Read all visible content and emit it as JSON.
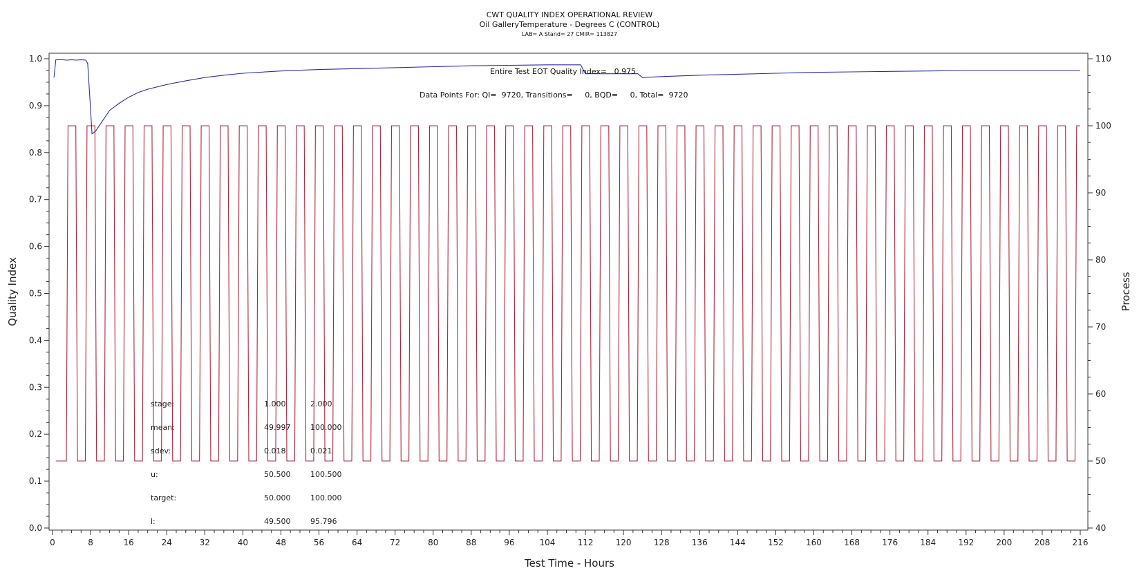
{
  "chart_data": {
    "type": "line",
    "title": "CWT QUALITY INDEX OPERATIONAL REVIEW",
    "subtitle": "Oil GalleryTemperature - Degrees C (CONTROL)",
    "subsubtitle": "LAB= A Stand= 27 CMIR= 113827",
    "xlabel": "Test Time - Hours",
    "ylabel": "Quality Index",
    "y2label": "Process",
    "xlim": [
      0,
      216
    ],
    "ylim": [
      0,
      1.0
    ],
    "y2lim": [
      40,
      110
    ],
    "xticks": [
      0,
      8,
      16,
      24,
      32,
      40,
      48,
      56,
      64,
      72,
      80,
      88,
      96,
      104,
      112,
      120,
      128,
      136,
      144,
      152,
      160,
      168,
      176,
      184,
      192,
      200,
      208,
      216
    ],
    "yticks": [
      0.0,
      0.1,
      0.2,
      0.3,
      0.4,
      0.5,
      0.6,
      0.7,
      0.8,
      0.9,
      1.0
    ],
    "ytick_labels": [
      "0.0",
      "0.1",
      "0.2",
      "0.3",
      "0.4",
      "0.5",
      "0.6",
      "0.7",
      "0.8",
      "0.9",
      "1.0"
    ],
    "y2ticks": [
      40,
      50,
      60,
      70,
      80,
      90,
      100,
      110
    ],
    "grid": false,
    "annotations": {
      "eot": "Entire Test EOT Quality Index=   0.975",
      "points": "Data Points For: QI=  9720, Transitions=     0, BQD=     0, Total=  9720"
    },
    "stats": {
      "rows": [
        {
          "label": "stage:",
          "v1": "1.000",
          "v2": "2.000"
        },
        {
          "label": "mean:",
          "v1": "49.997",
          "v2": "100.000"
        },
        {
          "label": "sdev:",
          "v1": "0.018",
          "v2": "0.021"
        },
        {
          "label": "u:",
          "v1": "50.500",
          "v2": "100.500"
        },
        {
          "label": "target:",
          "v1": "50.000",
          "v2": "100.000"
        },
        {
          "label": "l:",
          "v1": "49.500",
          "v2": "95.796"
        }
      ]
    },
    "series": [
      {
        "axis": "left",
        "color": "#2b2bb0",
        "x": [
          0.3,
          0.7,
          2,
          3,
          4,
          5,
          6,
          7,
          7.4,
          8,
          8.3,
          9,
          10,
          11,
          12,
          14,
          16,
          18,
          20,
          24,
          28,
          32,
          36,
          40,
          48,
          56,
          64,
          72,
          80,
          88,
          96,
          104,
          110,
          111,
          112,
          116,
          120,
          123,
          124,
          128,
          136,
          144,
          152,
          160,
          168,
          176,
          184,
          192,
          200,
          208,
          216
        ],
        "y": [
          0.96,
          0.998,
          0.998,
          0.997,
          0.998,
          0.997,
          0.998,
          0.997,
          0.99,
          0.89,
          0.84,
          0.845,
          0.86,
          0.875,
          0.89,
          0.905,
          0.918,
          0.928,
          0.935,
          0.945,
          0.953,
          0.96,
          0.965,
          0.969,
          0.974,
          0.977,
          0.979,
          0.981,
          0.983,
          0.985,
          0.986,
          0.987,
          0.987,
          0.987,
          0.968,
          0.968,
          0.968,
          0.968,
          0.96,
          0.962,
          0.965,
          0.967,
          0.969,
          0.971,
          0.972,
          0.973,
          0.974,
          0.975,
          0.975,
          0.975,
          0.975
        ]
      },
      {
        "axis": "right",
        "color": "#b0243a",
        "shape": "square-wave",
        "low": 50,
        "high": 100,
        "start_hours": 2.9,
        "period_hours": 4,
        "high_hours": 2,
        "end_hours": 216
      }
    ]
  }
}
